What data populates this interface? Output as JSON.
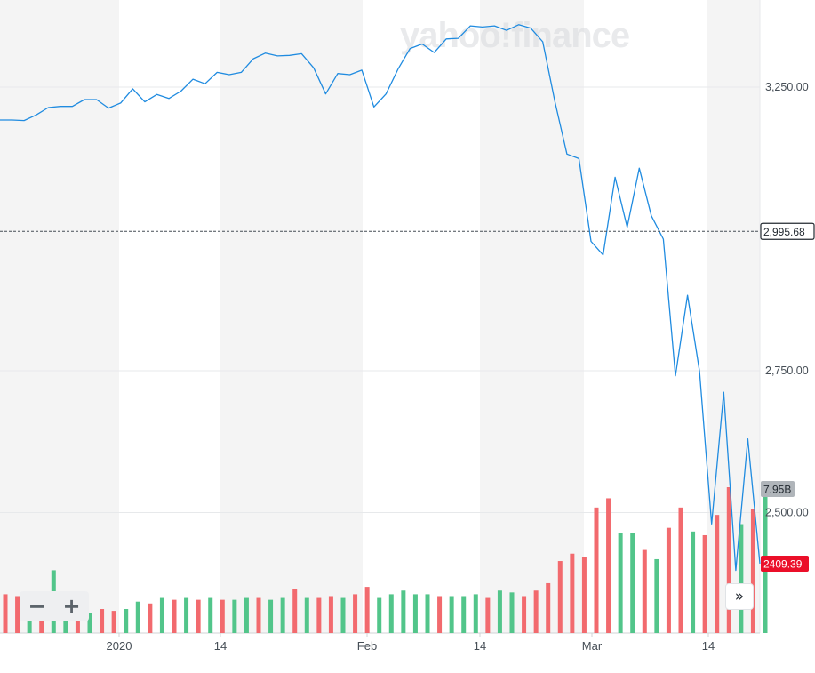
{
  "watermark": "yahoo!finance",
  "colors": {
    "line": "#1f8be0",
    "volume_up": "#52c58a",
    "volume_down": "#f26a6e",
    "band": "#f4f4f4",
    "grid": "#e7e9eb",
    "current_badge_bg": "#232a31",
    "low_badge_bg": "#eb0f29",
    "volume_badge_bg": "#b0b5ba"
  },
  "icons": {
    "zoom_out": "minus-icon",
    "zoom_in": "plus-icon",
    "more": "double-chevron-right-icon"
  },
  "controls": {
    "zoom_out_label": "−",
    "zoom_in_label": "+",
    "more_label": "»"
  },
  "chart_data": {
    "type": "line",
    "y_axis": {
      "min": 2300,
      "max": 3400,
      "ticks": [
        "3,250.00",
        "2,750.00",
        "2,500.00"
      ],
      "tick_values": [
        3250,
        2750,
        2500
      ],
      "position": "right"
    },
    "x_axis": {
      "tick_labels": [
        "2020",
        "14",
        "Feb",
        "14",
        "Mar",
        "14"
      ]
    },
    "current_value_label": "2,995.68",
    "current_value": 2995.68,
    "last_value_label": "2409.39",
    "last_value": 2409.39,
    "volume_max_label": "7.95B",
    "series": [
      {
        "values": [
          3192,
          3192,
          3191,
          3201,
          3214,
          3216,
          3216,
          3228,
          3228,
          3213,
          3222,
          3247,
          3224,
          3237,
          3230,
          3243,
          3264,
          3256,
          3276,
          3272,
          3276,
          3300,
          3310,
          3305,
          3306,
          3309,
          3284,
          3238,
          3274,
          3272,
          3280,
          3215,
          3238,
          3282,
          3318,
          3326,
          3311,
          3335,
          3336,
          3358,
          3356,
          3358,
          3350,
          3360,
          3354,
          3330,
          3225,
          3132,
          3124,
          2978,
          2954,
          3091,
          3003,
          3107,
          3023,
          2982,
          2741,
          2883,
          2749,
          2480,
          2712,
          2398,
          2630,
          2410
        ]
      }
    ],
    "volume": {
      "values": [
        2.1,
        2.0,
        2.2,
        1.2,
        3.4,
        1.6,
        1.3,
        1.1,
        1.3,
        1.2,
        1.3,
        1.7,
        1.6,
        1.9,
        1.8,
        1.9,
        1.8,
        1.9,
        1.8,
        1.8,
        1.9,
        1.9,
        1.8,
        1.9,
        2.4,
        1.9,
        1.9,
        2.0,
        1.9,
        2.1,
        2.5,
        1.9,
        2.1,
        2.3,
        2.1,
        2.1,
        2.0,
        2.0,
        2.0,
        2.1,
        1.9,
        2.3,
        2.2,
        2.0,
        2.3,
        2.7,
        3.9,
        4.3,
        4.1,
        6.8,
        7.3,
        5.4,
        5.4,
        4.5,
        4.0,
        5.7,
        6.8,
        5.5,
        5.3,
        6.4,
        7.9,
        5.9,
        6.7,
        7.6
      ],
      "directions": [
        "down",
        "down",
        "up",
        "down",
        "up",
        "up",
        "down",
        "up",
        "down",
        "down",
        "up",
        "up",
        "down",
        "up",
        "down",
        "up",
        "down",
        "up",
        "down",
        "up",
        "up",
        "down",
        "up",
        "up",
        "down",
        "up",
        "down",
        "down",
        "up",
        "down",
        "down",
        "up",
        "up",
        "up",
        "up",
        "up",
        "down",
        "up",
        "up",
        "up",
        "down",
        "up",
        "up",
        "down",
        "down",
        "down",
        "down",
        "down",
        "down",
        "down",
        "down",
        "up",
        "up",
        "down",
        "up",
        "down",
        "down",
        "up",
        "down",
        "down",
        "down",
        "up",
        "down",
        "up"
      ]
    }
  }
}
